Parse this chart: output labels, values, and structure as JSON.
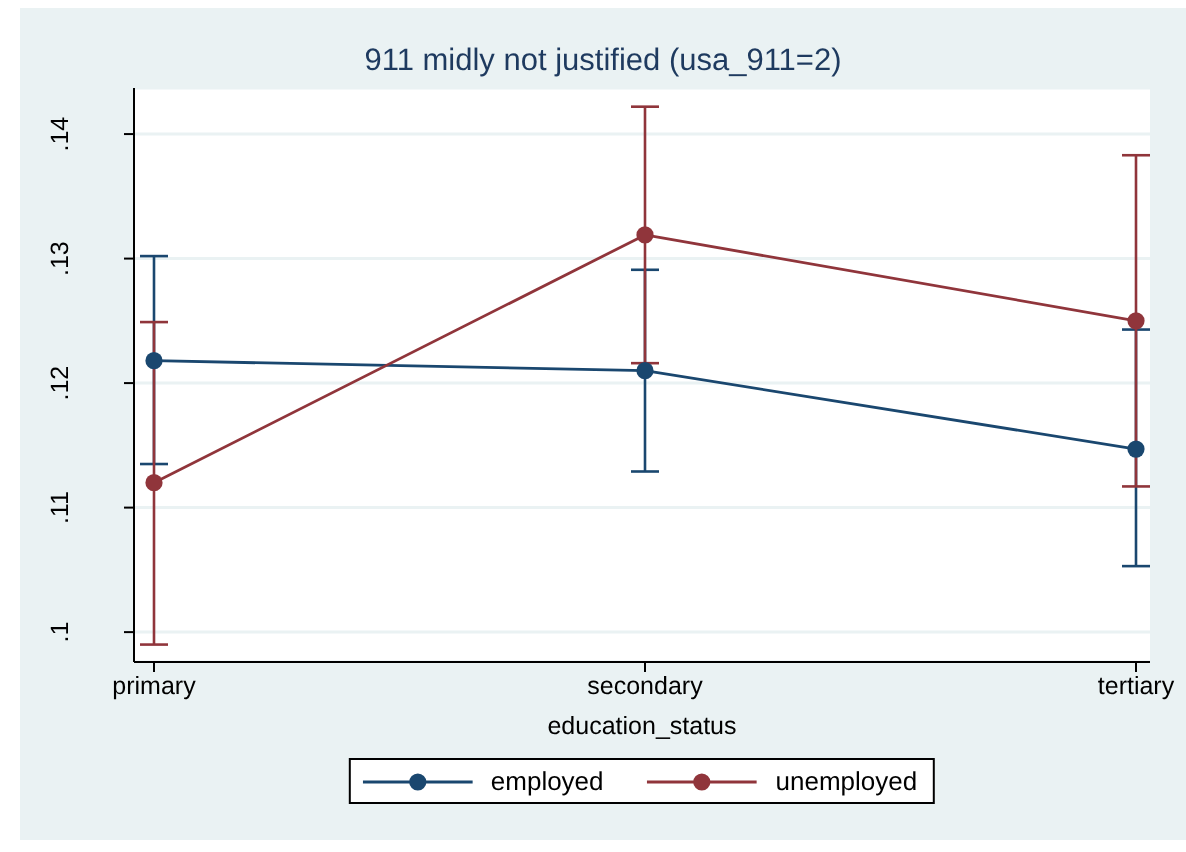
{
  "chart_data": {
    "type": "line",
    "title": "911 midly not justified (usa_911=2)",
    "xlabel": "education_status",
    "categories": [
      "primary",
      "secondary",
      "tertiary"
    ],
    "series": [
      {
        "name": "employed",
        "color": "#1a476f",
        "values": [
          0.1218,
          0.121,
          0.1147
        ],
        "errors": [
          [
            0.1135,
            0.1302
          ],
          [
            0.1129,
            0.1291
          ],
          [
            0.1053,
            0.1243
          ]
        ]
      },
      {
        "name": "unemployed",
        "color": "#90353b",
        "values": [
          0.112,
          0.1319,
          0.125
        ],
        "errors": [
          [
            0.099,
            0.1249
          ],
          [
            0.1216,
            0.1422
          ],
          [
            0.1117,
            0.1383
          ]
        ]
      }
    ],
    "ylim": [
      0.0976,
      0.1437
    ],
    "yticks": [
      {
        "value": 0.1,
        "label": ".1"
      },
      {
        "value": 0.11,
        "label": ".11"
      },
      {
        "value": 0.12,
        "label": ".12"
      },
      {
        "value": 0.13,
        "label": ".13"
      },
      {
        "value": 0.14,
        "label": ".14"
      }
    ],
    "grid": "y",
    "legend": "bottom",
    "marker": "circle"
  }
}
